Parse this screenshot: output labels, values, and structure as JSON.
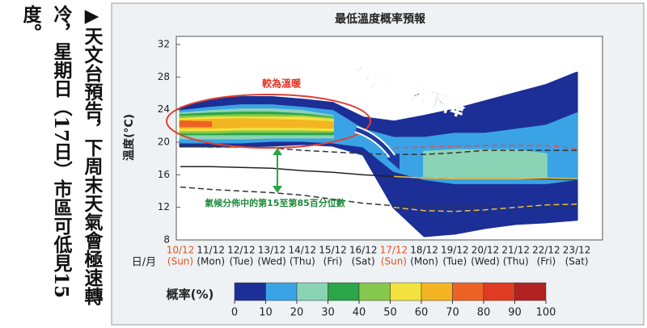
{
  "caption": "▶天文台預告，下周末天氣會極速轉冷，星期日（17日）市區可低見15度。",
  "chart_data": {
    "type": "area",
    "title": "最低溫度概率預報",
    "y_label": "溫度(°C)",
    "x_label": "日/月",
    "categories": [
      "10/12",
      "11/12",
      "12/12",
      "13/12",
      "14/12",
      "15/12",
      "16/12",
      "17/12",
      "18/12",
      "19/12",
      "20/12",
      "21/12",
      "22/12",
      "23/12"
    ],
    "weekdays": [
      "(Sun)",
      "(Mon)",
      "(Tue)",
      "(Wed)",
      "(Thu)",
      "(Fri)",
      "(Sat)",
      "(Sun)",
      "(Mon)",
      "(Tue)",
      "(Wed)",
      "(Thu)",
      "(Fri)",
      "(Sat)"
    ],
    "ylim": [
      8,
      32
    ],
    "yticks": [
      8,
      12,
      16,
      20,
      24,
      28,
      32
    ],
    "bands": [
      {
        "color": "#1c2f96",
        "lower": [
          19.5,
          19.5,
          19.5,
          19.6,
          19.8,
          19.6,
          18.5,
          12,
          8.5,
          8.8,
          9.5,
          10,
          10.2,
          10.5
        ],
        "upper": [
          24.2,
          25.2,
          25.5,
          25.5,
          25.2,
          24.8,
          23,
          22.5,
          23.2,
          24,
          25,
          26,
          27,
          28.5
        ]
      },
      {
        "color": "#3aa3e6",
        "lower": [
          20,
          20,
          20,
          20.2,
          20.2,
          20,
          19.5,
          16.5,
          15.5,
          15,
          15,
          15,
          15,
          15.5
        ],
        "upper": [
          23.8,
          24.2,
          24.5,
          24.5,
          24.2,
          23.8,
          21.5,
          20.5,
          20.5,
          21,
          21,
          21.5,
          22,
          23.5
        ]
      },
      {
        "color": "#8ad3b4",
        "lower": [
          20.5,
          20.5,
          20.5,
          20.6,
          20.6,
          20.6,
          null,
          null,
          15.8,
          15.6,
          15.6,
          15.7,
          15.8,
          null
        ],
        "upper": [
          23.5,
          23.8,
          24,
          24,
          23.8,
          23.2,
          null,
          null,
          18.8,
          19,
          19,
          19,
          18.5,
          null
        ]
      },
      {
        "color": "#2aa548",
        "lower": [
          21,
          21,
          21,
          21,
          21,
          21,
          null,
          null,
          null,
          null,
          null,
          null,
          null,
          null
        ],
        "upper": [
          23.3,
          23.5,
          23.6,
          23.6,
          23.4,
          23,
          null,
          null,
          null,
          null,
          null,
          null,
          null,
          null
        ]
      },
      {
        "color": "#86c84c",
        "lower": [
          21.2,
          21.2,
          21.3,
          21.3,
          21.3,
          21.3,
          null,
          null,
          null,
          null,
          null,
          null,
          null,
          null
        ],
        "upper": [
          23.1,
          23.2,
          23.3,
          23.3,
          23.2,
          22.9,
          null,
          null,
          null,
          null,
          null,
          null,
          null,
          null
        ]
      },
      {
        "color": "#f2e33e",
        "lower": [
          21.5,
          21.5,
          21.6,
          21.6,
          21.6,
          21.5,
          null,
          null,
          null,
          null,
          null,
          null,
          null,
          null
        ],
        "upper": [
          22.8,
          23,
          23,
          23,
          23,
          22.7,
          null,
          null,
          null,
          null,
          null,
          null,
          null,
          null
        ]
      },
      {
        "color": "#f3b522",
        "lower": [
          21.8,
          21.8,
          21.9,
          21.9,
          21.9,
          21.8,
          null,
          null,
          null,
          null,
          null,
          null,
          null,
          null
        ],
        "upper": [
          22.6,
          22.7,
          22.8,
          22.7,
          22.6,
          22.4,
          null,
          null,
          null,
          null,
          null,
          null,
          null,
          null
        ]
      },
      {
        "color": "#ec6224",
        "lower": [
          22,
          22,
          null,
          null,
          null,
          null,
          null,
          null,
          null,
          null,
          null,
          null,
          null,
          null
        ],
        "upper": [
          22.5,
          22.4,
          null,
          null,
          null,
          null,
          null,
          null,
          null,
          null,
          null,
          null,
          null,
          null
        ]
      }
    ],
    "lines": [
      {
        "color": "#222222",
        "dashed": false,
        "values": [
          17,
          17,
          16.9,
          16.8,
          16.5,
          16.3,
          16,
          15.8,
          15.6,
          15.5,
          15.5,
          15.5,
          15.5,
          15.4
        ]
      },
      {
        "color": "#333333",
        "dashed": true,
        "values": [
          19.5,
          19.4,
          19.4,
          19.3,
          19,
          18.8,
          18.6,
          18.5,
          18.5,
          18.7,
          19,
          19,
          19,
          19
        ]
      },
      {
        "color": "#333333",
        "dashed": true,
        "values": [
          14.5,
          14.2,
          14,
          13.8,
          13.5,
          13,
          12.5,
          12.2,
          12,
          12,
          12,
          12,
          12,
          12
        ]
      },
      {
        "color": "#e05050",
        "dashed": true,
        "values": [
          null,
          null,
          null,
          null,
          null,
          null,
          null,
          19.3,
          19.4,
          19.5,
          19.6,
          19.6,
          19.6,
          19.2
        ]
      },
      {
        "color": "#e8c040",
        "dashed": false,
        "values": [
          null,
          null,
          null,
          null,
          null,
          null,
          null,
          15.8,
          15.6,
          15.5,
          15.5,
          15.5,
          15.6,
          15.5
        ]
      },
      {
        "color": "#e8c040",
        "dashed": true,
        "values": [
          null,
          null,
          null,
          null,
          null,
          null,
          null,
          12,
          11.6,
          11.5,
          11.7,
          12,
          12.3,
          12.4
        ]
      }
    ],
    "annotations": [
      "較為溫暖",
      "氣溫顯著下降",
      "氣候分佈中的第15至第85百分位數"
    ],
    "colorbar": {
      "label": "概率(%)",
      "ticks": [
        0,
        10,
        20,
        30,
        40,
        50,
        60,
        70,
        80,
        90,
        100
      ],
      "colors": [
        "#1c2f96",
        "#3aa3e6",
        "#8ad3b4",
        "#2aa548",
        "#86c84c",
        "#f2e33e",
        "#f3b522",
        "#ec6224",
        "#e13a22",
        "#b22222"
      ]
    }
  }
}
